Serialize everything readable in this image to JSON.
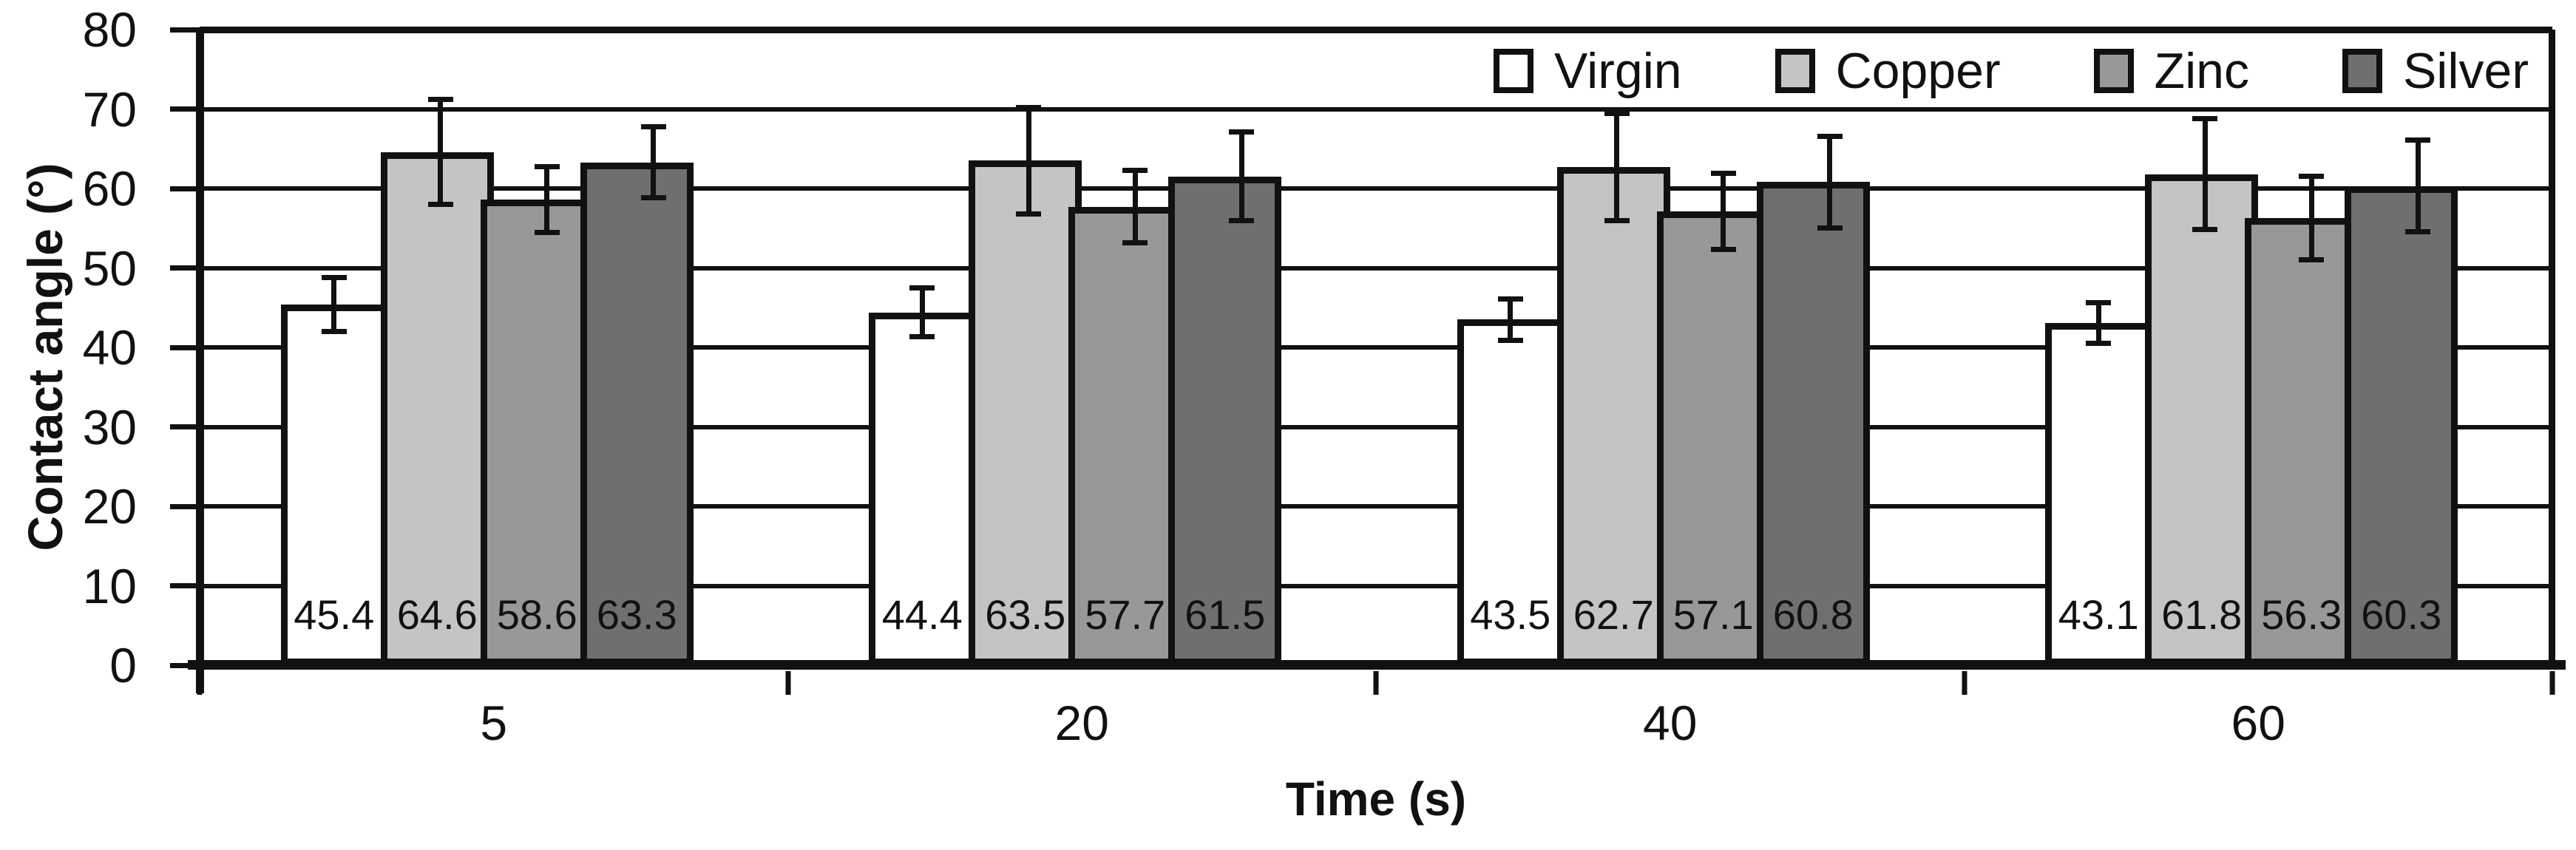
{
  "chart_data": {
    "type": "bar",
    "title": "",
    "xlabel": "Time (s)",
    "ylabel": "Contact angle (°)",
    "ylim": [
      0,
      80
    ],
    "ytick_step": 10,
    "grid": true,
    "legend_position": "top-right-inside",
    "bar_value_labels_shown": true,
    "categories": [
      "5",
      "20",
      "40",
      "60"
    ],
    "series": [
      {
        "name": "Virgin",
        "color": "#ffffff",
        "values": [
          45.4,
          44.4,
          43.5,
          43.1
        ],
        "errors": [
          3.7,
          3.4,
          2.9,
          2.9
        ]
      },
      {
        "name": "Copper",
        "color": "#c4c4c4",
        "values": [
          64.6,
          63.5,
          62.7,
          61.8
        ],
        "errors": [
          6.9,
          7.0,
          7.1,
          7.3
        ]
      },
      {
        "name": "Zinc",
        "color": "#989898",
        "values": [
          58.6,
          57.7,
          57.1,
          56.3
        ],
        "errors": [
          4.5,
          4.9,
          5.1,
          5.6
        ]
      },
      {
        "name": "Silver",
        "color": "#6f6f6f",
        "values": [
          63.3,
          61.5,
          60.8,
          60.3
        ],
        "errors": [
          4.8,
          5.9,
          6.1,
          6.1
        ]
      }
    ],
    "colors": {
      "line": "#111111",
      "background": "#ffffff"
    }
  }
}
